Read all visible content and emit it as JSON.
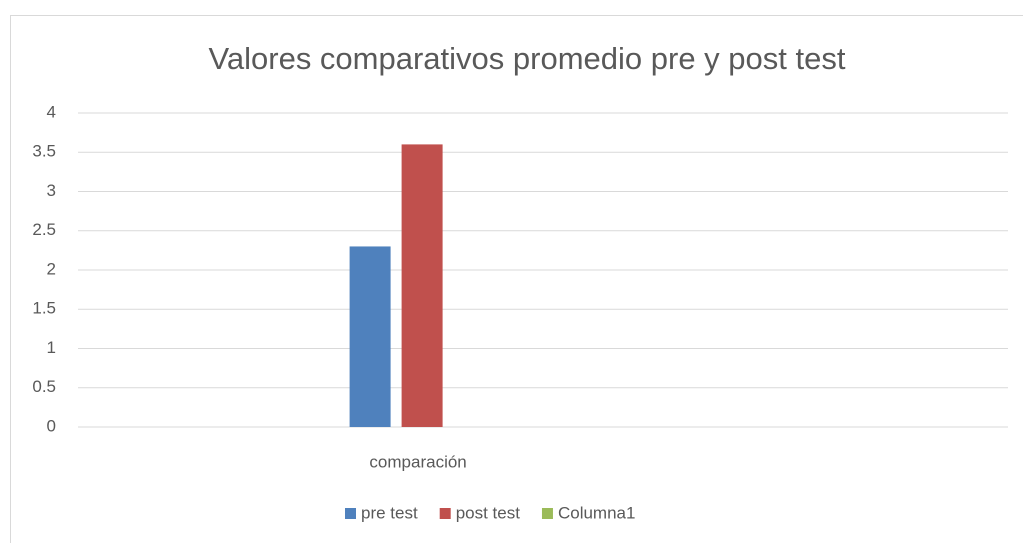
{
  "chart_data": {
    "type": "bar",
    "title": "Valores comparativos promedio pre y post test",
    "categories": [
      "comparación"
    ],
    "series": [
      {
        "name": "pre test",
        "color": "#4f81bd",
        "values": [
          2.3
        ]
      },
      {
        "name": "post test",
        "color": "#c0504d",
        "values": [
          3.6
        ]
      },
      {
        "name": "Columna1",
        "color": "#9bbb59",
        "values": [
          null
        ]
      }
    ],
    "ylim": [
      0,
      4
    ],
    "yticks": [
      0,
      0.5,
      1,
      1.5,
      2,
      2.5,
      3,
      3.5,
      4
    ],
    "grid": true,
    "legend": "bottom"
  }
}
